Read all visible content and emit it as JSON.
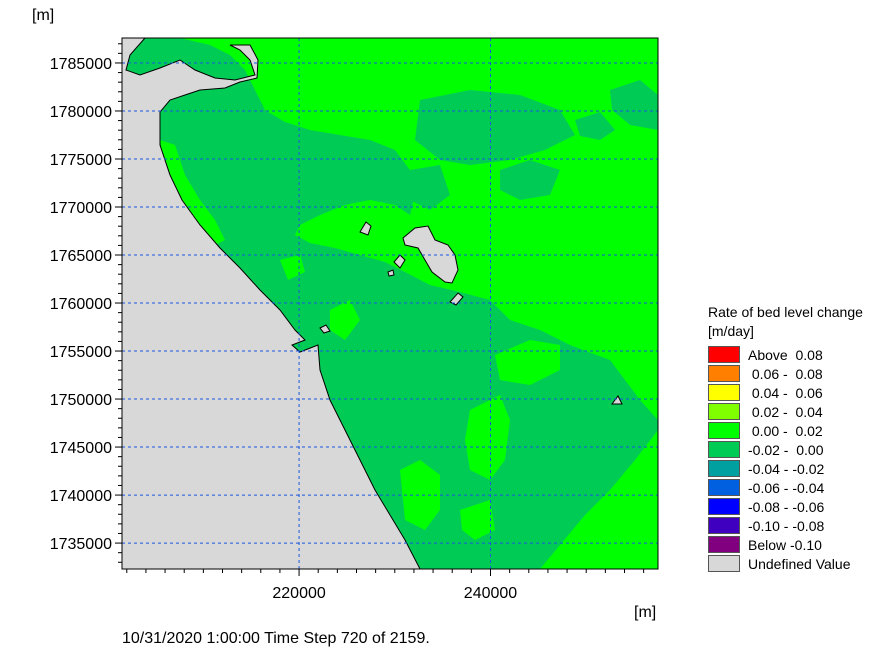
{
  "chart_data": {
    "type": "heatmap",
    "title": "",
    "ylabel": "[m]",
    "xlabel": "[m]",
    "xlim": [
      201500,
      257500
    ],
    "ylim": [
      1732300,
      1787600
    ],
    "x_ticks": [
      "220000",
      "240000"
    ],
    "x_tick_values": [
      220000,
      240000
    ],
    "y_ticks": [
      "1785000",
      "1780000",
      "1775000",
      "1770000",
      "1765000",
      "1760000",
      "1755000",
      "1750000",
      "1745000",
      "1740000",
      "1735000"
    ],
    "y_tick_values": [
      1785000,
      1780000,
      1775000,
      1770000,
      1765000,
      1760000,
      1755000,
      1750000,
      1745000,
      1740000,
      1735000
    ],
    "grid": "dashed",
    "legend_placement": "right",
    "legend": {
      "title_line1": "Rate of bed level change",
      "title_line2": "[m/day]",
      "entries": [
        {
          "label": "Above  0.08",
          "color": "#ff0000"
        },
        {
          "label": " 0.06 -  0.08",
          "color": "#ff8000"
        },
        {
          "label": " 0.04 -  0.06",
          "color": "#ffff00"
        },
        {
          "label": " 0.02 -  0.04",
          "color": "#80ff00"
        },
        {
          "label": " 0.00 -  0.02",
          "color": "#00ff00"
        },
        {
          "label": "-0.02 -  0.00",
          "color": "#00cc55"
        },
        {
          "label": "-0.04 - -0.02",
          "color": "#00a0a0"
        },
        {
          "label": "-0.06 - -0.04",
          "color": "#0060e0"
        },
        {
          "label": "-0.08 - -0.06",
          "color": "#0000ff"
        },
        {
          "label": "-0.10 - -0.08",
          "color": "#4000c0"
        },
        {
          "label": "Below -0.10",
          "color": "#800080"
        },
        {
          "label": "Undefined Value",
          "color": "#d8d8d8"
        }
      ]
    },
    "footer": "10/31/2020 1:00:00  Time Step 720 of 2159."
  }
}
